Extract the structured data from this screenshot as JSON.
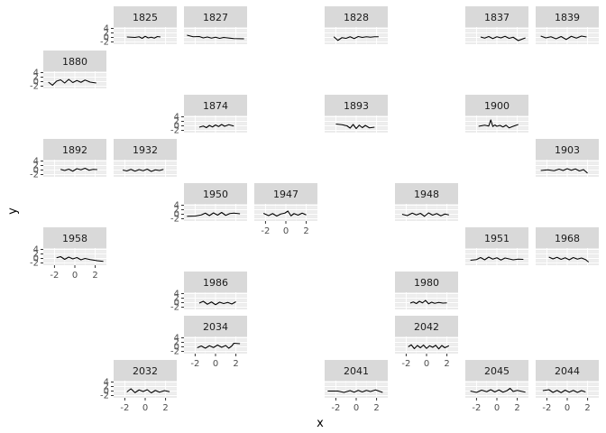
{
  "chart_data": {
    "type": "line",
    "xlabel": "x",
    "ylabel": "y",
    "xlim": [
      -3.1,
      3.1
    ],
    "ylim": [
      -3,
      4.6
    ],
    "x_ticks": [
      "-2",
      "0",
      "2"
    ],
    "y_ticks": [
      "4",
      "2",
      "0",
      "-2"
    ],
    "theme": "ggplot2 facet_wrap, strips #D9D9D9, grid #EBEBEB",
    "line_color": "#000000",
    "panels": [
      {
        "label": "1825",
        "row": 0,
        "col": 1,
        "show_y": true,
        "show_x": false,
        "x": [
          -1.8,
          -1.4,
          -1.0,
          -0.6,
          -0.3,
          0.0,
          0.3,
          0.6,
          0.9,
          1.2,
          1.5
        ],
        "y": [
          0.2,
          0.1,
          0.0,
          0.3,
          -0.4,
          0.5,
          -0.2,
          0.1,
          -0.3,
          0.4,
          0.2
        ]
      },
      {
        "label": "1827",
        "row": 0,
        "col": 2,
        "show_y": false,
        "show_x": false,
        "x": [
          -2.8,
          -2.2,
          -1.6,
          -1.2,
          -0.8,
          -0.4,
          0.0,
          0.4,
          0.8,
          1.2,
          1.8,
          2.8
        ],
        "y": [
          1.0,
          0.3,
          0.4,
          -0.2,
          0.2,
          -0.3,
          0.1,
          -0.4,
          0.0,
          -0.2,
          -0.5,
          -0.6
        ]
      },
      {
        "label": "1828",
        "row": 0,
        "col": 4,
        "show_y": false,
        "show_x": false,
        "x": [
          -2.2,
          -1.8,
          -1.4,
          -1.0,
          -0.6,
          -0.2,
          0.2,
          0.6,
          1.0,
          1.4,
          1.8,
          2.2
        ],
        "y": [
          0.3,
          -1.3,
          -0.1,
          -0.4,
          0.3,
          -0.5,
          0.4,
          0.0,
          0.3,
          0.1,
          0.3,
          0.3
        ]
      },
      {
        "label": "1837",
        "row": 0,
        "col": 6,
        "show_y": false,
        "show_x": false,
        "x": [
          -1.6,
          -1.2,
          -0.8,
          -0.4,
          0.0,
          0.4,
          0.8,
          1.2,
          1.6,
          2.1,
          2.8
        ],
        "y": [
          0.2,
          -0.3,
          0.4,
          -0.5,
          0.3,
          -0.2,
          0.5,
          -0.4,
          0.1,
          -1.4,
          -0.2
        ]
      },
      {
        "label": "1839",
        "row": 0,
        "col": 7,
        "show_y": false,
        "show_x": false,
        "x": [
          -2.6,
          -2.1,
          -1.6,
          -1.1,
          -0.6,
          -0.1,
          0.4,
          0.9,
          1.4,
          1.9
        ],
        "y": [
          0.6,
          -0.2,
          0.3,
          -0.6,
          0.4,
          -0.9,
          0.5,
          -0.3,
          0.6,
          0.2
        ]
      },
      {
        "label": "1880",
        "row": 1,
        "col": 0,
        "show_y": true,
        "show_x": false,
        "x": [
          -2.6,
          -2.2,
          -1.8,
          -1.4,
          -1.0,
          -0.6,
          -0.2,
          0.2,
          0.6,
          1.0,
          1.5,
          2.1
        ],
        "y": [
          -0.2,
          -1.6,
          0.2,
          0.8,
          -0.6,
          1.0,
          -0.4,
          0.5,
          -0.3,
          0.7,
          -0.2,
          -0.6
        ]
      },
      {
        "label": "1874",
        "row": 2,
        "col": 2,
        "show_y": true,
        "show_x": false,
        "x": [
          -1.6,
          -1.2,
          -0.9,
          -0.6,
          -0.3,
          0.0,
          0.3,
          0.6,
          0.9,
          1.3,
          1.8
        ],
        "y": [
          -0.6,
          -0.1,
          -0.8,
          0.2,
          -0.5,
          0.4,
          -0.3,
          0.6,
          -0.2,
          0.5,
          -0.1
        ]
      },
      {
        "label": "1893",
        "row": 2,
        "col": 4,
        "show_y": false,
        "show_x": false,
        "x": [
          -2.0,
          -1.4,
          -0.9,
          -0.6,
          -0.3,
          0.0,
          0.3,
          0.6,
          0.9,
          1.3,
          1.8
        ],
        "y": [
          0.8,
          0.5,
          0.0,
          -1.0,
          0.6,
          -1.2,
          0.3,
          -0.8,
          0.2,
          -0.9,
          -0.6
        ]
      },
      {
        "label": "1900",
        "row": 2,
        "col": 6,
        "show_y": false,
        "show_x": false,
        "x": [
          -1.8,
          -1.2,
          -0.8,
          -0.6,
          -0.4,
          -0.2,
          0.0,
          0.3,
          0.6,
          0.9,
          1.2,
          1.6,
          2.1
        ],
        "y": [
          -0.2,
          0.3,
          -0.1,
          2.6,
          -0.3,
          0.4,
          -0.2,
          0.2,
          -0.5,
          0.3,
          -0.9,
          -0.2,
          0.6
        ]
      },
      {
        "label": "1892",
        "row": 3,
        "col": 0,
        "show_y": true,
        "show_x": false,
        "x": [
          -1.4,
          -1.0,
          -0.6,
          -0.2,
          0.2,
          0.6,
          1.0,
          1.4,
          1.8,
          2.2
        ],
        "y": [
          0.3,
          -0.2,
          0.4,
          -0.5,
          0.6,
          0.1,
          0.8,
          -0.1,
          0.3,
          0.2
        ]
      },
      {
        "label": "1932",
        "row": 3,
        "col": 1,
        "show_y": false,
        "show_x": false,
        "x": [
          -2.2,
          -1.8,
          -1.4,
          -1.0,
          -0.6,
          -0.2,
          0.2,
          0.6,
          1.0,
          1.4,
          1.8
        ],
        "y": [
          0.0,
          -0.4,
          0.3,
          -0.5,
          0.2,
          -0.3,
          0.4,
          -0.6,
          0.1,
          -0.2,
          0.3
        ]
      },
      {
        "label": "1903",
        "row": 3,
        "col": 7,
        "show_y": false,
        "show_x": false,
        "x": [
          -2.6,
          -1.9,
          -1.3,
          -0.8,
          -0.4,
          0.0,
          0.4,
          0.8,
          1.2,
          1.6,
          2.0
        ],
        "y": [
          -0.2,
          0.1,
          -0.3,
          0.4,
          -0.2,
          0.6,
          -0.1,
          0.5,
          -0.4,
          0.2,
          -1.4
        ]
      },
      {
        "label": "1950",
        "row": 4,
        "col": 2,
        "show_y": true,
        "show_x": false,
        "x": [
          -2.8,
          -2.0,
          -1.4,
          -1.0,
          -0.6,
          -0.2,
          0.2,
          0.6,
          1.0,
          1.4,
          1.8,
          2.4
        ],
        "y": [
          -0.9,
          -0.8,
          -0.3,
          0.5,
          -0.6,
          0.6,
          -0.4,
          0.8,
          -0.5,
          0.3,
          0.5,
          0.2
        ]
      },
      {
        "label": "1947",
        "row": 4,
        "col": 3,
        "show_y": false,
        "show_x": true,
        "x": [
          -2.2,
          -1.7,
          -1.3,
          -0.9,
          -0.5,
          -0.1,
          0.2,
          0.5,
          0.8,
          1.2,
          1.6,
          2.0
        ],
        "y": [
          0.4,
          -0.6,
          0.3,
          -0.8,
          0.1,
          0.5,
          1.4,
          -0.7,
          0.3,
          -0.4,
          0.5,
          -0.3
        ]
      },
      {
        "label": "1948",
        "row": 4,
        "col": 5,
        "show_y": false,
        "show_x": false,
        "x": [
          -2.4,
          -1.9,
          -1.4,
          -1.0,
          -0.6,
          -0.2,
          0.2,
          0.6,
          1.0,
          1.4,
          1.8,
          2.2
        ],
        "y": [
          0.0,
          -0.6,
          0.5,
          -0.3,
          0.4,
          -0.9,
          0.6,
          -0.4,
          0.3,
          -0.7,
          0.1,
          -0.3
        ]
      },
      {
        "label": "1958",
        "row": 5,
        "col": 0,
        "show_y": true,
        "show_x": true,
        "x": [
          -1.8,
          -1.4,
          -1.0,
          -0.6,
          -0.2,
          0.2,
          0.6,
          1.0,
          1.5,
          2.2,
          2.8
        ],
        "y": [
          0.3,
          0.8,
          -0.4,
          0.6,
          -0.2,
          0.4,
          -0.6,
          0.0,
          -0.5,
          -1.0,
          -1.3
        ]
      },
      {
        "label": "1951",
        "row": 5,
        "col": 6,
        "show_y": false,
        "show_x": false,
        "x": [
          -2.6,
          -2.0,
          -1.6,
          -1.2,
          -0.8,
          -0.4,
          0.0,
          0.4,
          0.8,
          1.2,
          1.6,
          2.1,
          2.6
        ],
        "y": [
          -0.8,
          -0.5,
          0.4,
          -0.6,
          0.6,
          -0.3,
          0.3,
          -0.7,
          0.2,
          -0.2,
          -0.6,
          -0.3,
          -0.4
        ]
      },
      {
        "label": "1968",
        "row": 5,
        "col": 7,
        "show_y": false,
        "show_x": false,
        "x": [
          -1.8,
          -1.4,
          -1.0,
          -0.6,
          -0.2,
          0.2,
          0.6,
          1.0,
          1.4,
          1.8,
          2.1
        ],
        "y": [
          0.6,
          -0.2,
          0.5,
          -0.4,
          0.3,
          -0.6,
          0.4,
          -0.3,
          0.2,
          -0.5,
          -1.6
        ]
      },
      {
        "label": "1986",
        "row": 6,
        "col": 2,
        "show_y": true,
        "show_x": false,
        "x": [
          -1.6,
          -1.2,
          -0.8,
          -0.4,
          0.0,
          0.4,
          0.8,
          1.2,
          1.6,
          2.0
        ],
        "y": [
          -0.2,
          0.6,
          -0.7,
          0.3,
          -0.9,
          0.2,
          -0.4,
          0.1,
          -0.6,
          0.4
        ]
      },
      {
        "label": "1980",
        "row": 6,
        "col": 5,
        "show_y": false,
        "show_x": false,
        "x": [
          -1.6,
          -1.3,
          -1.0,
          -0.7,
          -0.4,
          -0.1,
          0.2,
          0.5,
          0.8,
          1.2,
          1.6,
          2.0
        ],
        "y": [
          -0.2,
          0.3,
          -0.4,
          0.6,
          -0.1,
          1.0,
          -0.5,
          0.2,
          -0.3,
          0.1,
          -0.2,
          -0.1
        ]
      },
      {
        "label": "2034",
        "row": 7,
        "col": 2,
        "show_y": true,
        "show_x": true,
        "x": [
          -1.8,
          -1.4,
          -1.0,
          -0.6,
          -0.2,
          0.2,
          0.6,
          1.0,
          1.3,
          1.6,
          1.8,
          2.4
        ],
        "y": [
          -0.4,
          0.4,
          -0.6,
          0.5,
          -0.3,
          0.8,
          -0.2,
          0.6,
          -0.6,
          0.4,
          1.6,
          1.4
        ]
      },
      {
        "label": "2042",
        "row": 7,
        "col": 5,
        "show_y": false,
        "show_x": true,
        "x": [
          -1.8,
          -1.5,
          -1.2,
          -0.9,
          -0.6,
          -0.3,
          0.0,
          0.3,
          0.6,
          0.9,
          1.2,
          1.5,
          1.8,
          2.2
        ],
        "y": [
          0.0,
          0.9,
          -0.8,
          0.6,
          -0.4,
          0.8,
          -0.7,
          0.5,
          -0.2,
          0.7,
          -0.9,
          0.6,
          -0.4,
          0.5
        ]
      },
      {
        "label": "2032",
        "row": 8,
        "col": 1,
        "show_y": true,
        "show_x": true,
        "x": [
          -1.8,
          -1.4,
          -1.0,
          -0.6,
          -0.2,
          0.2,
          0.6,
          1.0,
          1.4,
          1.9,
          2.4
        ],
        "y": [
          -0.4,
          1.0,
          -0.7,
          0.5,
          -0.2,
          0.6,
          -0.8,
          0.3,
          -0.5,
          0.2,
          -0.3
        ]
      },
      {
        "label": "2041",
        "row": 8,
        "col": 4,
        "show_y": false,
        "show_x": true,
        "x": [
          -2.8,
          -1.8,
          -1.2,
          -0.6,
          -0.2,
          0.2,
          0.6,
          1.0,
          1.4,
          1.9,
          2.6
        ],
        "y": [
          0.0,
          0.0,
          -0.6,
          0.2,
          -0.5,
          0.3,
          -0.4,
          0.3,
          -0.2,
          0.5,
          -0.6
        ]
      },
      {
        "label": "2045",
        "row": 8,
        "col": 6,
        "show_y": false,
        "show_x": true,
        "x": [
          -2.6,
          -2.0,
          -1.5,
          -1.0,
          -0.6,
          -0.2,
          0.2,
          0.6,
          1.0,
          1.3,
          1.6,
          2.0,
          2.8
        ],
        "y": [
          0.0,
          -0.6,
          0.4,
          -0.3,
          0.6,
          -0.4,
          0.5,
          -0.5,
          0.2,
          1.2,
          -0.2,
          0.3,
          -0.5
        ]
      },
      {
        "label": "2044",
        "row": 8,
        "col": 7,
        "show_y": false,
        "show_x": true,
        "x": [
          -2.4,
          -1.8,
          -1.4,
          -1.0,
          -0.6,
          -0.2,
          0.2,
          0.6,
          1.0,
          1.4,
          1.8
        ],
        "y": [
          0.2,
          0.6,
          -0.6,
          0.3,
          -0.7,
          0.4,
          -0.5,
          0.3,
          -0.6,
          0.2,
          -0.4
        ]
      }
    ]
  }
}
